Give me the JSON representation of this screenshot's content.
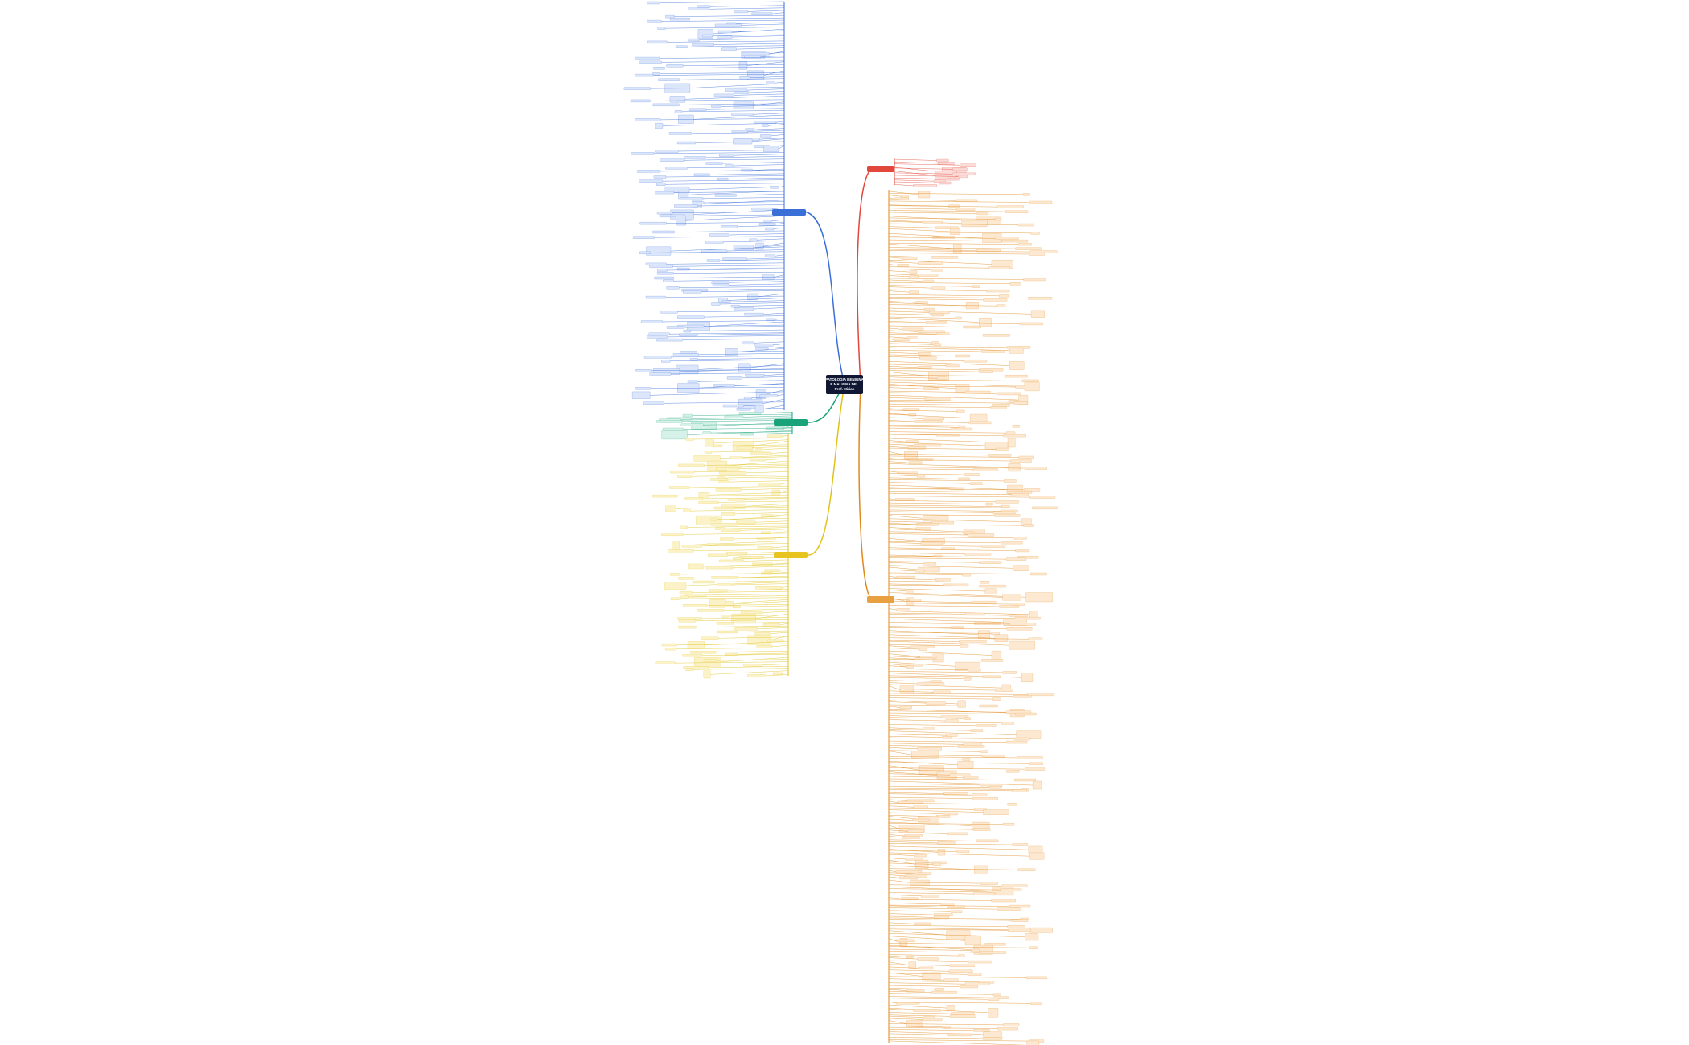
{
  "central": {
    "lines": [
      "PATOLOGIA BENIGNA",
      "E MALIGNA DEL",
      "Prof. Mirian"
    ]
  }
}
